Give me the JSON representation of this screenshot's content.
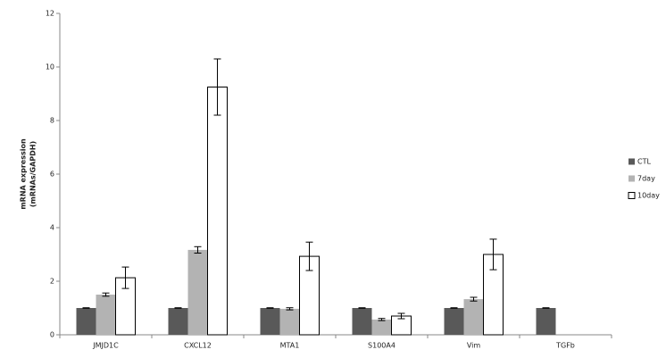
{
  "chart_data": {
    "type": "bar",
    "y_label": [
      "mRNA expression",
      "(mRNAs/GAPDH)"
    ],
    "categories": [
      "JMJD1C",
      "CXCL12",
      "MTA1",
      "S100A4",
      "Vim",
      "TGFb"
    ],
    "series": [
      {
        "name": "CTL",
        "color": "#595959",
        "values": [
          1,
          1,
          1,
          1,
          1,
          1
        ],
        "errors": [
          0.01,
          0.01,
          0.01,
          0.01,
          0.01,
          0.01
        ]
      },
      {
        "name": "7day",
        "color": "#b3b3b3",
        "values": [
          1.5,
          3.17,
          0.97,
          0.57,
          1.33,
          null
        ],
        "errors": [
          0.06,
          0.12,
          0.04,
          0.04,
          0.07,
          null
        ]
      },
      {
        "name": "10day",
        "color": "#ffffff",
        "values": [
          2.13,
          9.25,
          2.93,
          0.7,
          3.0,
          null
        ],
        "errors": [
          0.4,
          1.05,
          0.53,
          0.1,
          0.57,
          null
        ]
      }
    ],
    "ylim": [
      0,
      12
    ],
    "yticks": [
      0,
      2,
      4,
      6,
      8,
      10,
      12
    ],
    "grid": false
  }
}
